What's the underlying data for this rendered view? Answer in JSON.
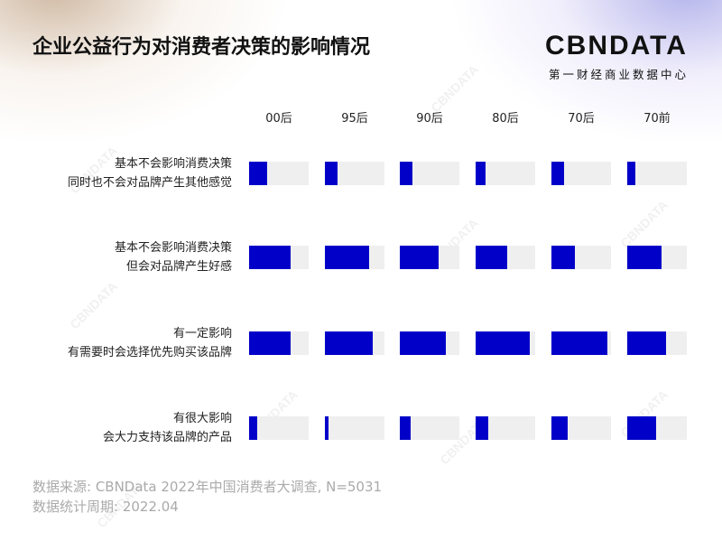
{
  "title": "企业公益行为对消费者决策的影响情况",
  "logo": {
    "text": "CBNDATA",
    "subtitle": "第一财经商业数据中心"
  },
  "chart_data": {
    "type": "bar",
    "orientation": "horizontal",
    "title": "企业公益行为对消费者决策的影响情况",
    "categories": [
      "00后",
      "95后",
      "90后",
      "80后",
      "70后",
      "70前"
    ],
    "rows": [
      {
        "label_lines": [
          "基本不会影响消费决策",
          "同时也不会对品牌产生其他感觉"
        ],
        "values": [
          30,
          21,
          21,
          17,
          21,
          13
        ]
      },
      {
        "label_lines": [
          "基本不会影响消费决策",
          "但会对品牌产生好感"
        ],
        "values": [
          70,
          74,
          65,
          53,
          39,
          57
        ]
      },
      {
        "label_lines": [
          "有一定影响",
          "有需要时会选择优先购买该品牌"
        ],
        "values": [
          70,
          80,
          78,
          91,
          94,
          65
        ]
      },
      {
        "label_lines": [
          "有很大影响",
          "会大力支持该品牌的产品"
        ],
        "values": [
          13,
          6,
          18,
          21,
          28,
          49
        ]
      }
    ],
    "value_unit": "%",
    "xlim": [
      0,
      100
    ],
    "colors": {
      "bar": "#0000c8",
      "track": "#efefef"
    },
    "grid": false
  },
  "footer": {
    "source": "数据来源: CBNData 2022年中国消费者大调查, N=5031",
    "period": "数据统计周期: 2022.04"
  }
}
